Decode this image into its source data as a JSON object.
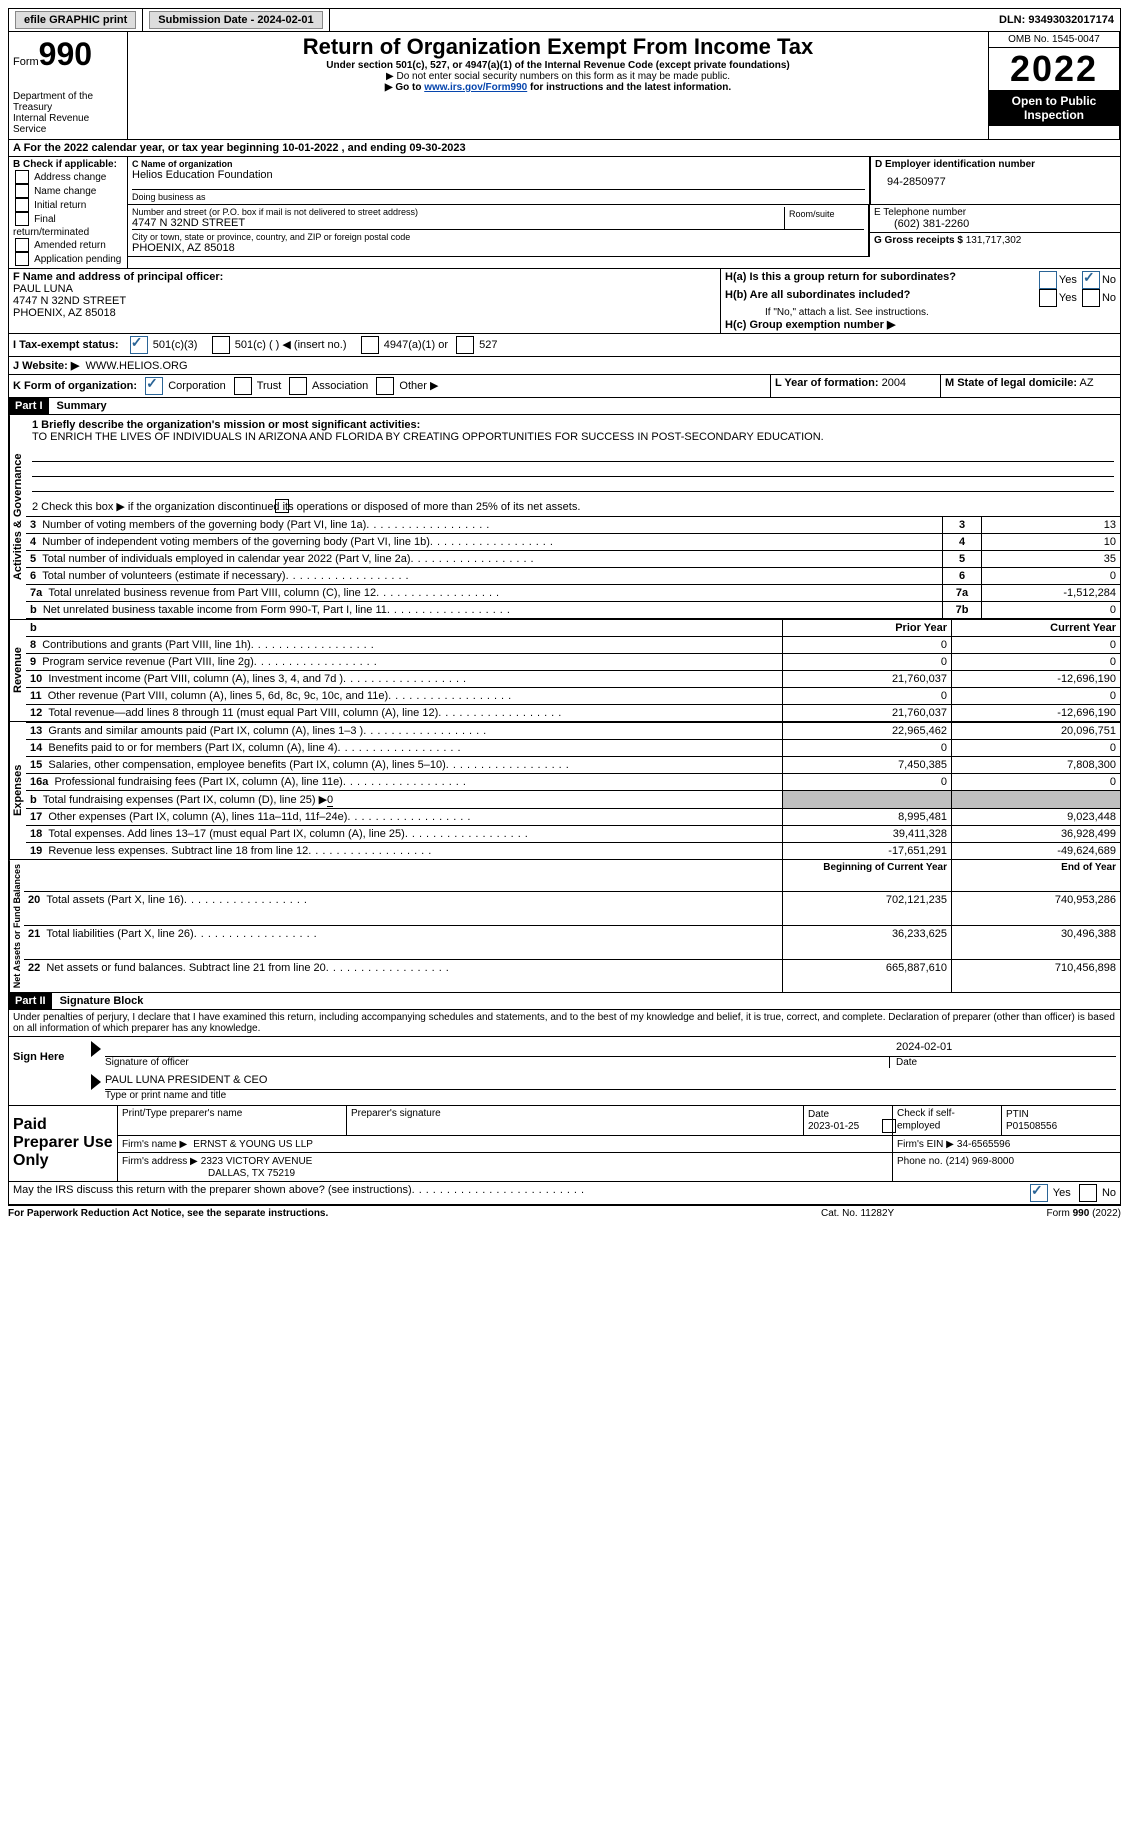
{
  "topbar": {
    "efile_label": "efile GRAPHIC print",
    "submission_label": "Submission Date - 2024-02-01",
    "dln_label": "DLN: 93493032017174"
  },
  "header": {
    "form_word": "Form",
    "form_number": "990",
    "title": "Return of Organization Exempt From Income Tax",
    "subtitle": "Under section 501(c), 527, or 4947(a)(1) of the Internal Revenue Code (except private foundations)",
    "warn1": "▶ Do not enter social security numbers on this form as it may be made public.",
    "warn2_prefix": "▶ Go to ",
    "warn2_link": "www.irs.gov/Form990",
    "warn2_suffix": " for instructions and the latest information.",
    "dept": "Department of the Treasury",
    "irs": "Internal Revenue Service",
    "omb": "OMB No. 1545-0047",
    "year": "2022",
    "open": "Open to Public Inspection"
  },
  "A": {
    "text_prefix": "A For the 2022 calendar year, or tax year beginning ",
    "begin": "10-01-2022",
    "mid": "   , and ending ",
    "end": "09-30-2023"
  },
  "B": {
    "label": "B Check if applicable:",
    "items": [
      "Address change",
      "Name change",
      "Initial return",
      "Final return/terminated",
      "Amended return",
      "Application pending"
    ]
  },
  "C": {
    "name_label": "C Name of organization",
    "name": "Helios Education Foundation",
    "dba_label": "Doing business as",
    "dba": "",
    "street_label": "Number and street (or P.O. box if mail is not delivered to street address)",
    "room_label": "Room/suite",
    "street": "4747 N 32ND STREET",
    "city_label": "City or town, state or province, country, and ZIP or foreign postal code",
    "city": "PHOENIX, AZ  85018"
  },
  "D": {
    "label": "D Employer identification number",
    "value": "94-2850977"
  },
  "E": {
    "label": "E Telephone number",
    "value": "(602) 381-2260"
  },
  "G": {
    "label": "G Gross receipts $",
    "value": "131,717,302"
  },
  "F": {
    "label": "F  Name and address of principal officer:",
    "name": "PAUL LUNA",
    "street": "4747 N 32ND STREET",
    "city": "PHOENIX, AZ  85018"
  },
  "H": {
    "a_label": "H(a)  Is this a group return for subordinates?",
    "b_label": "H(b)  Are all subordinates included?",
    "b_note": "If \"No,\" attach a list. See instructions.",
    "c_label": "H(c)  Group exemption number ▶",
    "yes": "Yes",
    "no": "No"
  },
  "I": {
    "label": "I    Tax-exempt status:",
    "c3": "501(c)(3)",
    "c_blank": "501(c) (  ) ◀ (insert no.)",
    "a1": "4947(a)(1) or",
    "s527": "527"
  },
  "J": {
    "label": "J   Website: ▶",
    "value": "WWW.HELIOS.ORG"
  },
  "K": {
    "label": "K Form of organization:",
    "corp": "Corporation",
    "trust": "Trust",
    "assoc": "Association",
    "other": "Other ▶"
  },
  "L": {
    "label": "L Year of formation:",
    "value": "2004"
  },
  "M": {
    "label": "M State of legal domicile:",
    "value": "AZ"
  },
  "part1": {
    "tab": "Part I",
    "title": "Summary",
    "line1_label": "1   Briefly describe the organization's mission or most significant activities:",
    "mission": "TO ENRICH THE LIVES OF INDIVIDUALS IN ARIZONA AND FLORIDA BY CREATING OPPORTUNITIES FOR SUCCESS IN POST-SECONDARY EDUCATION.",
    "line2": "2    Check this box ▶        if the organization discontinued its operations or disposed of more than 25% of its net assets.",
    "vlabels": {
      "ag": "Activities & Governance",
      "rev": "Revenue",
      "exp": "Expenses",
      "na": "Net Assets or Fund Balances"
    },
    "col_prior": "Prior Year",
    "col_current": "Current Year",
    "col_boy": "Beginning of Current Year",
    "col_eoy": "End of Year",
    "rows_gov": [
      {
        "n": "3",
        "t": "Number of voting members of the governing body (Part VI, line 1a)",
        "box": "3",
        "v": "13"
      },
      {
        "n": "4",
        "t": "Number of independent voting members of the governing body (Part VI, line 1b)",
        "box": "4",
        "v": "10"
      },
      {
        "n": "5",
        "t": "Total number of individuals employed in calendar year 2022 (Part V, line 2a)",
        "box": "5",
        "v": "35"
      },
      {
        "n": "6",
        "t": "Total number of volunteers (estimate if necessary)",
        "box": "6",
        "v": "0"
      },
      {
        "n": "7a",
        "t": "Total unrelated business revenue from Part VIII, column (C), line 12",
        "box": "7a",
        "v": "-1,512,284"
      },
      {
        "n": "b",
        "t": "Net unrelated business taxable income from Form 990-T, Part I, line 11",
        "box": "7b",
        "v": "0"
      }
    ],
    "rows_rev": [
      {
        "n": "8",
        "t": "Contributions and grants (Part VIII, line 1h)",
        "p": "0",
        "c": "0"
      },
      {
        "n": "9",
        "t": "Program service revenue (Part VIII, line 2g)",
        "p": "0",
        "c": "0"
      },
      {
        "n": "10",
        "t": "Investment income (Part VIII, column (A), lines 3, 4, and 7d )",
        "p": "21,760,037",
        "c": "-12,696,190"
      },
      {
        "n": "11",
        "t": "Other revenue (Part VIII, column (A), lines 5, 6d, 8c, 9c, 10c, and 11e)",
        "p": "0",
        "c": "0"
      },
      {
        "n": "12",
        "t": "Total revenue—add lines 8 through 11 (must equal Part VIII, column (A), line 12)",
        "p": "21,760,037",
        "c": "-12,696,190"
      }
    ],
    "rows_exp": [
      {
        "n": "13",
        "t": "Grants and similar amounts paid (Part IX, column (A), lines 1–3 )",
        "p": "22,965,462",
        "c": "20,096,751"
      },
      {
        "n": "14",
        "t": "Benefits paid to or for members (Part IX, column (A), line 4)",
        "p": "0",
        "c": "0"
      },
      {
        "n": "15",
        "t": "Salaries, other compensation, employee benefits (Part IX, column (A), lines 5–10)",
        "p": "7,450,385",
        "c": "7,808,300"
      },
      {
        "n": "16a",
        "t": "Professional fundraising fees (Part IX, column (A), line 11e)",
        "p": "0",
        "c": "0"
      },
      {
        "n": "b",
        "t": "Total fundraising expenses (Part IX, column (D), line 25) ▶",
        "fund": "0",
        "shaded": true
      },
      {
        "n": "17",
        "t": "Other expenses (Part IX, column (A), lines 11a–11d, 11f–24e)",
        "p": "8,995,481",
        "c": "9,023,448"
      },
      {
        "n": "18",
        "t": "Total expenses. Add lines 13–17 (must equal Part IX, column (A), line 25)",
        "p": "39,411,328",
        "c": "36,928,499"
      },
      {
        "n": "19",
        "t": "Revenue less expenses. Subtract line 18 from line 12",
        "p": "-17,651,291",
        "c": "-49,624,689"
      }
    ],
    "rows_na": [
      {
        "n": "20",
        "t": "Total assets (Part X, line 16)",
        "p": "702,121,235",
        "c": "740,953,286"
      },
      {
        "n": "21",
        "t": "Total liabilities (Part X, line 26)",
        "p": "36,233,625",
        "c": "30,496,388"
      },
      {
        "n": "22",
        "t": "Net assets or fund balances. Subtract line 21 from line 20",
        "p": "665,887,610",
        "c": "710,456,898"
      }
    ]
  },
  "part2": {
    "tab": "Part II",
    "title": "Signature Block",
    "declaration": "Under penalties of perjury, I declare that I have examined this return, including accompanying schedules and statements, and to the best of my knowledge and belief, it is true, correct, and complete. Declaration of preparer (other than officer) is based on all information of which preparer has any knowledge.",
    "sign_here": "Sign Here",
    "sig_officer": "Signature of officer",
    "sig_date": "2024-02-01",
    "date_label": "Date",
    "officer_name": "PAUL LUNA  PRESIDENT & CEO",
    "type_name_label": "Type or print name and title",
    "paid": "Paid Preparer Use Only",
    "prep_name_label": "Print/Type preparer's name",
    "prep_sig_label": "Preparer's signature",
    "prep_date_label": "Date",
    "prep_date": "2023-01-25",
    "self_emp": "Check         if self-employed",
    "ptin_label": "PTIN",
    "ptin": "P01508556",
    "firm_name_label": "Firm's name      ▶",
    "firm_name": "ERNST & YOUNG US LLP",
    "firm_ein_label": "Firm's EIN ▶",
    "firm_ein": "34-6565596",
    "firm_addr_label": "Firm's address ▶",
    "firm_addr1": "2323 VICTORY AVENUE",
    "firm_addr2": "DALLAS, TX  75219",
    "phone_label": "Phone no.",
    "phone": "(214) 969-8000",
    "may_irs": "May the IRS discuss this return with the preparer shown above? (see instructions)",
    "yes": "Yes",
    "no": "No"
  },
  "footer": {
    "left": "For Paperwork Reduction Act Notice, see the separate instructions.",
    "mid": "Cat. No. 11282Y",
    "right": "Form 990 (2022)"
  }
}
